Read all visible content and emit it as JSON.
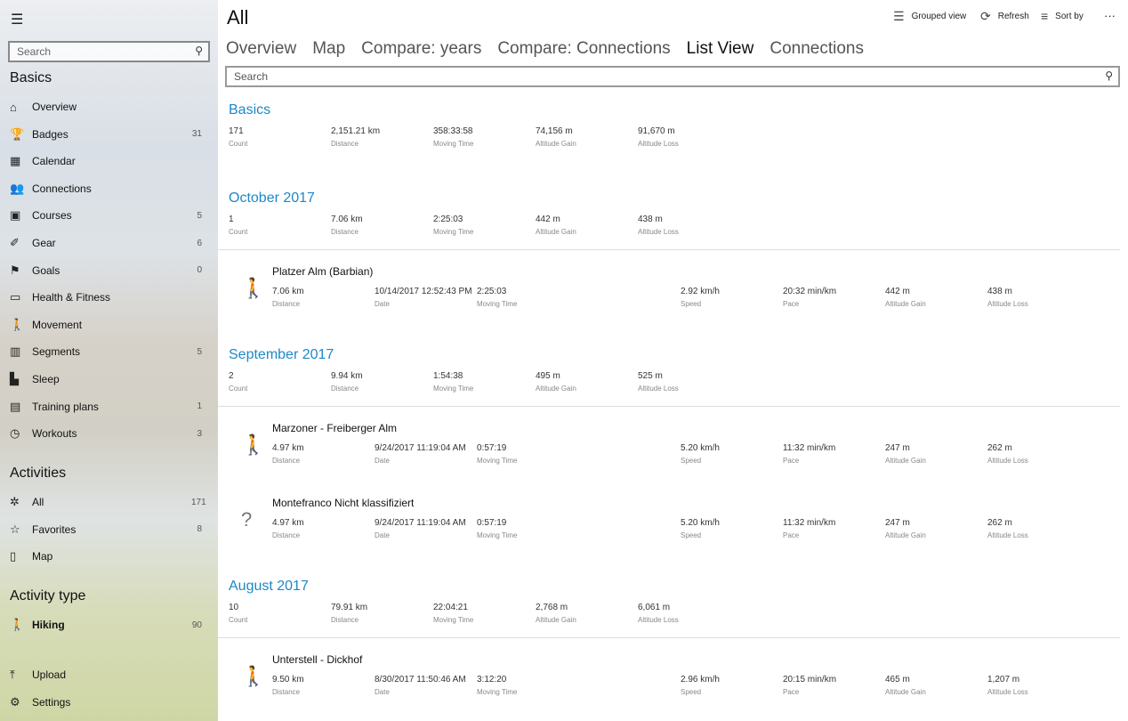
{
  "sidebar": {
    "search_placeholder": "Search",
    "basics_heading": "Basics",
    "basics": [
      {
        "icon": "home-icon",
        "glyph": "⌂",
        "label": "Overview",
        "count": ""
      },
      {
        "icon": "trophy-icon",
        "glyph": "🏆",
        "label": "Badges",
        "count": "31"
      },
      {
        "icon": "calendar-icon",
        "glyph": "▦",
        "label": "Calendar",
        "count": ""
      },
      {
        "icon": "people-icon",
        "glyph": "👥",
        "label": "Connections",
        "count": ""
      },
      {
        "icon": "map-course-icon",
        "glyph": "▣",
        "label": "Courses",
        "count": "5"
      },
      {
        "icon": "shoe-icon",
        "glyph": "✐",
        "label": "Gear",
        "count": "6"
      },
      {
        "icon": "flag-icon",
        "glyph": "⚑",
        "label": "Goals",
        "count": "0"
      },
      {
        "icon": "scale-icon",
        "glyph": "▭",
        "label": "Health & Fitness",
        "count": ""
      },
      {
        "icon": "walk-icon",
        "glyph": "🚶",
        "label": "Movement",
        "count": ""
      },
      {
        "icon": "segments-icon",
        "glyph": "▥",
        "label": "Segments",
        "count": "5"
      },
      {
        "icon": "bed-icon",
        "glyph": "▙",
        "label": "Sleep",
        "count": ""
      },
      {
        "icon": "plan-icon",
        "glyph": "▤",
        "label": "Training plans",
        "count": "1"
      },
      {
        "icon": "stopwatch-icon",
        "glyph": "◷",
        "label": "Workouts",
        "count": "3"
      }
    ],
    "activities_heading": "Activities",
    "activities": [
      {
        "icon": "activities-icon",
        "glyph": "✲",
        "label": "All",
        "count": "171"
      },
      {
        "icon": "star-icon",
        "glyph": "☆",
        "label": "Favorites",
        "count": "8"
      },
      {
        "icon": "map-icon",
        "glyph": "▯",
        "label": "Map",
        "count": ""
      }
    ],
    "type_heading": "Activity type",
    "types": [
      {
        "icon": "hiking-icon",
        "glyph": "🚶",
        "label": "Hiking",
        "count": "90"
      }
    ],
    "bottom": [
      {
        "icon": "upload-icon",
        "glyph": "⤒",
        "label": "Upload",
        "count": ""
      },
      {
        "icon": "settings-icon",
        "glyph": "⚙",
        "label": "Settings",
        "count": ""
      }
    ]
  },
  "header": {
    "title": "All",
    "grouped_view": "Grouped view",
    "refresh": "Refresh",
    "sort_by": "Sort by",
    "more": "···"
  },
  "tabs": [
    {
      "label": "Overview"
    },
    {
      "label": "Map"
    },
    {
      "label": "Compare: years"
    },
    {
      "label": "Compare: Connections"
    },
    {
      "label": "List View",
      "active": true
    },
    {
      "label": "Connections"
    }
  ],
  "search_placeholder": "Search",
  "accent_color": "#1e88c8",
  "basics": {
    "title": "Basics",
    "stats": [
      [
        "171",
        "Count"
      ],
      [
        "2,151.21 km",
        "Distance"
      ],
      [
        "358:33:58",
        "Moving Time"
      ],
      [
        "74,156 m",
        "Altitude Gain"
      ],
      [
        "91,670 m",
        "Altitude Loss"
      ]
    ]
  },
  "groups": [
    {
      "title": "October 2017",
      "stats": [
        [
          "1",
          "Count"
        ],
        [
          "7.06 km",
          "Distance"
        ],
        [
          "2:25:03",
          "Moving Time"
        ],
        [
          "442 m",
          "Altitude Gain"
        ],
        [
          "438 m",
          "Altitude Loss"
        ]
      ],
      "activities": [
        {
          "name": "Platzer Alm (Barbian)",
          "icon": "hiking-icon",
          "stats": [
            [
              "7.06 km",
              "Distance"
            ],
            [
              "10/14/2017 12:52:43 PM",
              "Date"
            ],
            [
              "2:25:03",
              "Moving Time"
            ],
            [
              "2.92 km/h",
              "Speed"
            ],
            [
              "20:32 min/km",
              "Pace"
            ],
            [
              "442 m",
              "Altitude Gain"
            ],
            [
              "438 m",
              "Altitude Loss"
            ]
          ]
        }
      ]
    },
    {
      "title": "September 2017",
      "stats": [
        [
          "2",
          "Count"
        ],
        [
          "9.94 km",
          "Distance"
        ],
        [
          "1:54:38",
          "Moving Time"
        ],
        [
          "495 m",
          "Altitude Gain"
        ],
        [
          "525 m",
          "Altitude Loss"
        ]
      ],
      "activities": [
        {
          "name": "Marzoner - Freiberger Alm",
          "icon": "hiking-icon",
          "stats": [
            [
              "4.97 km",
              "Distance"
            ],
            [
              "9/24/2017 11:19:04 AM",
              "Date"
            ],
            [
              "0:57:19",
              "Moving Time"
            ],
            [
              "5.20 km/h",
              "Speed"
            ],
            [
              "11:32 min/km",
              "Pace"
            ],
            [
              "247 m",
              "Altitude Gain"
            ],
            [
              "262 m",
              "Altitude Loss"
            ]
          ]
        },
        {
          "name": "Montefranco Nicht klassifiziert",
          "icon": "unknown-activity-icon",
          "stats": [
            [
              "4.97 km",
              "Distance"
            ],
            [
              "9/24/2017 11:19:04 AM",
              "Date"
            ],
            [
              "0:57:19",
              "Moving Time"
            ],
            [
              "5.20 km/h",
              "Speed"
            ],
            [
              "11:32 min/km",
              "Pace"
            ],
            [
              "247 m",
              "Altitude Gain"
            ],
            [
              "262 m",
              "Altitude Loss"
            ]
          ]
        }
      ]
    },
    {
      "title": "August 2017",
      "stats": [
        [
          "10",
          "Count"
        ],
        [
          "79.91 km",
          "Distance"
        ],
        [
          "22:04:21",
          "Moving Time"
        ],
        [
          "2,768 m",
          "Altitude Gain"
        ],
        [
          "6,061 m",
          "Altitude Loss"
        ]
      ],
      "activities": [
        {
          "name": "Unterstell - Dickhof",
          "icon": "hiking-icon",
          "stats": [
            [
              "9.50 km",
              "Distance"
            ],
            [
              "8/30/2017 11:50:46 AM",
              "Date"
            ],
            [
              "3:12:20",
              "Moving Time"
            ],
            [
              "2.96 km/h",
              "Speed"
            ],
            [
              "20:15 min/km",
              "Pace"
            ],
            [
              "465 m",
              "Altitude Gain"
            ],
            [
              "1,207 m",
              "Altitude Loss"
            ]
          ]
        }
      ]
    }
  ]
}
